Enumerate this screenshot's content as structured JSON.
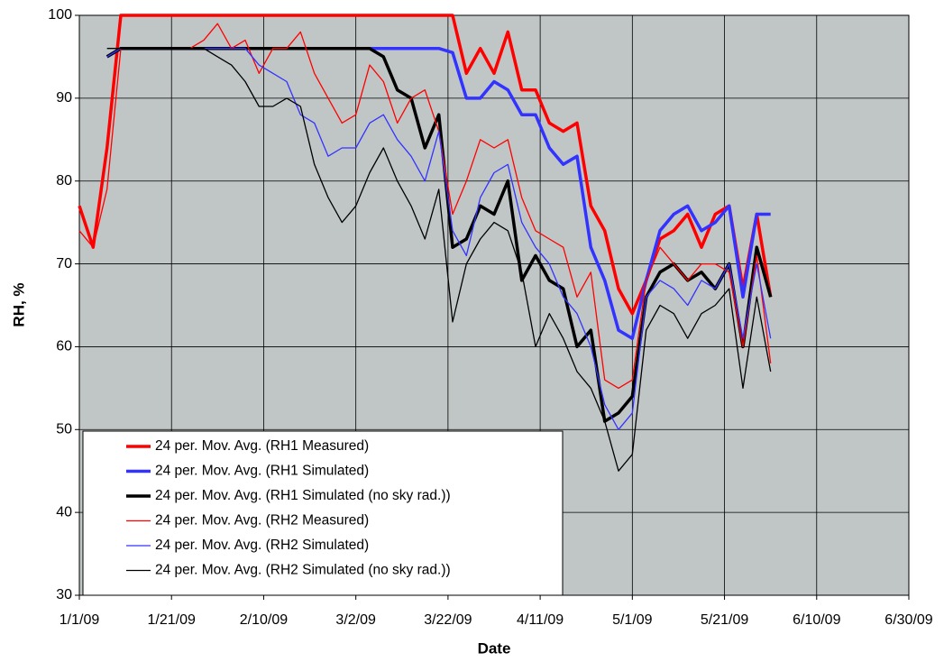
{
  "chart_data": {
    "type": "line",
    "x_label": "Date",
    "y_label": "RH, %",
    "x": [
      "1/1/09",
      "1/4/09",
      "1/7/09",
      "1/10/09",
      "1/13/09",
      "1/16/09",
      "1/19/09",
      "1/22/09",
      "1/25/09",
      "1/28/09",
      "1/31/09",
      "2/3/09",
      "2/6/09",
      "2/9/09",
      "2/12/09",
      "2/15/09",
      "2/18/09",
      "2/21/09",
      "2/24/09",
      "2/27/09",
      "3/2/09",
      "3/5/09",
      "3/8/09",
      "3/11/09",
      "3/14/09",
      "3/17/09",
      "3/20/09",
      "3/23/09",
      "3/26/09",
      "3/29/09",
      "4/1/09",
      "4/4/09",
      "4/7/09",
      "4/10/09",
      "4/13/09",
      "4/16/09",
      "4/19/09",
      "4/22/09",
      "4/25/09",
      "4/28/09",
      "5/1/09",
      "5/4/09",
      "5/7/09",
      "5/10/09",
      "5/13/09",
      "5/16/09",
      "5/19/09",
      "5/22/09",
      "5/25/09",
      "5/28/09",
      "5/31/09"
    ],
    "xlim": [
      "1/1/09",
      "6/30/09"
    ],
    "xticks": [
      "1/1/09",
      "1/21/09",
      "2/10/09",
      "3/2/09",
      "3/22/09",
      "4/11/09",
      "5/1/09",
      "5/21/09",
      "6/10/09",
      "6/30/09"
    ],
    "ylim": [
      30,
      100
    ],
    "yticks": [
      30,
      40,
      50,
      60,
      70,
      80,
      90,
      100
    ],
    "grid": true,
    "legend": "lower left",
    "series": [
      {
        "name": "24 per. Mov. Avg. (RH1 Measured)",
        "color": "#ff0000",
        "width": 3.5,
        "values": [
          77,
          72,
          84,
          100,
          100,
          100,
          100,
          100,
          100,
          100,
          100,
          100,
          100,
          100,
          100,
          100,
          100,
          100,
          100,
          100,
          100,
          100,
          100,
          100,
          100,
          100,
          100,
          100,
          93,
          96,
          93,
          98,
          91,
          91,
          87,
          86,
          87,
          77,
          74,
          67,
          64,
          68,
          73,
          74,
          76,
          72,
          76,
          77,
          67,
          76,
          66
        ]
      },
      {
        "name": "24 per. Mov. Avg. (RH1 Simulated)",
        "color": "#3333ff",
        "width": 3.5,
        "values": [
          null,
          null,
          95,
          96,
          96,
          96,
          96,
          96,
          96,
          96,
          96,
          96,
          96,
          96,
          96,
          96,
          96,
          96,
          96,
          96,
          96,
          96,
          96,
          96,
          96,
          96,
          96,
          95.5,
          90,
          90,
          92,
          91,
          88,
          88,
          84,
          82,
          83,
          72,
          68,
          62,
          61,
          68,
          74,
          76,
          77,
          74,
          75,
          77,
          66,
          76,
          76
        ]
      },
      {
        "name": "24 per. Mov. Avg. (RH1 Simulated (no sky rad.))",
        "color": "#000000",
        "width": 3.5,
        "values": [
          null,
          null,
          95,
          96,
          96,
          96,
          96,
          96,
          96,
          96,
          96,
          96,
          96,
          96,
          96,
          96,
          96,
          96,
          96,
          96,
          96,
          96,
          95,
          91,
          90,
          84,
          88,
          72,
          73,
          77,
          76,
          80,
          68,
          71,
          68,
          67,
          60,
          62,
          51,
          52,
          54,
          66,
          69,
          70,
          68,
          69,
          67,
          70,
          60,
          72,
          66
        ]
      },
      {
        "name": "24 per. Mov. Avg. (RH2 Measured)",
        "color": "#ff0000",
        "width": 1.3,
        "values": [
          74,
          72,
          79,
          96,
          96,
          96,
          96,
          96,
          96,
          97,
          99,
          96,
          97,
          93,
          96,
          96,
          98,
          93,
          90,
          87,
          88,
          94,
          92,
          87,
          90,
          91,
          86,
          76,
          80,
          85,
          84,
          85,
          78,
          74,
          73,
          72,
          66,
          69,
          56,
          55,
          56,
          68,
          72,
          70,
          68,
          70,
          70,
          69,
          60,
          71,
          58
        ]
      },
      {
        "name": "24 per. Mov. Avg. (RH2 Simulated)",
        "color": "#3333ff",
        "width": 1.3,
        "values": [
          null,
          null,
          95,
          96,
          96,
          96,
          96,
          96,
          96,
          96,
          96,
          96,
          96,
          94,
          93,
          92,
          88,
          87,
          83,
          84,
          84,
          87,
          88,
          85,
          83,
          80,
          86,
          74,
          71,
          78,
          81,
          82,
          75,
          72,
          70,
          66,
          64,
          60,
          53,
          50,
          52,
          66,
          68,
          67,
          65,
          68,
          67,
          70,
          61,
          70,
          61
        ]
      },
      {
        "name": "24 per. Mov. Avg. (RH2 Simulated (no sky rad.))",
        "color": "#000000",
        "width": 1.3,
        "values": [
          null,
          null,
          96,
          96,
          96,
          96,
          96,
          96,
          96,
          96,
          95,
          94,
          92,
          89,
          89,
          90,
          89,
          82,
          78,
          75,
          77,
          81,
          84,
          80,
          77,
          73,
          79,
          63,
          70,
          73,
          75,
          74,
          69,
          60,
          64,
          61,
          57,
          55,
          51,
          45,
          47,
          62,
          65,
          64,
          61,
          64,
          65,
          67,
          55,
          66,
          57
        ]
      }
    ]
  }
}
